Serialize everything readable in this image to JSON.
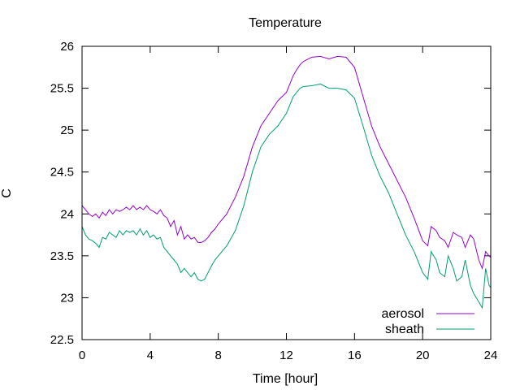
{
  "chart_data": {
    "type": "line",
    "title": "Temperature",
    "xlabel": "Time [hour]",
    "ylabel": "C",
    "xlim": [
      0,
      24
    ],
    "ylim": [
      22.5,
      26
    ],
    "xticks": [
      0,
      4,
      8,
      12,
      16,
      20,
      24
    ],
    "yticks": [
      22.5,
      23,
      23.5,
      24,
      24.5,
      25,
      25.5,
      26
    ],
    "xtick_labels": [
      "0",
      "4",
      "8",
      "12",
      "16",
      "20",
      "24"
    ],
    "ytick_labels": [
      "22.5",
      "23",
      "23.5",
      "24",
      "24.5",
      "25",
      "25.5",
      "26"
    ],
    "grid": false,
    "legend_position": "bottom-right",
    "series": [
      {
        "name": "aerosol",
        "color": "#9400d3",
        "x": [
          0,
          0.2,
          0.4,
          0.6,
          0.8,
          1.0,
          1.2,
          1.4,
          1.6,
          1.8,
          2.0,
          2.2,
          2.4,
          2.6,
          2.8,
          3.0,
          3.2,
          3.4,
          3.6,
          3.8,
          4.0,
          4.2,
          4.4,
          4.6,
          4.8,
          5.0,
          5.2,
          5.4,
          5.6,
          5.8,
          6.0,
          6.2,
          6.4,
          6.6,
          6.8,
          7.0,
          7.2,
          7.4,
          7.6,
          7.8,
          8.0,
          8.5,
          9.0,
          9.5,
          10.0,
          10.5,
          11.0,
          11.5,
          12.0,
          12.2,
          12.4,
          12.6,
          12.8,
          13.0,
          13.5,
          14.0,
          14.5,
          15.0,
          15.5,
          16.0,
          16.5,
          17.0,
          17.5,
          18.0,
          18.5,
          19.0,
          19.5,
          20.0,
          20.3,
          20.5,
          20.8,
          21.0,
          21.3,
          21.5,
          21.8,
          22.0,
          22.3,
          22.5,
          22.8,
          23.0,
          23.3,
          23.5,
          23.7,
          23.9,
          24.0
        ],
        "y": [
          24.1,
          24.05,
          24.0,
          23.97,
          24.0,
          23.95,
          24.02,
          23.98,
          24.05,
          24.0,
          24.05,
          24.03,
          24.05,
          24.08,
          24.05,
          24.1,
          24.05,
          24.08,
          24.05,
          24.1,
          24.05,
          24.03,
          24.0,
          24.05,
          23.98,
          23.95,
          23.85,
          23.92,
          23.75,
          23.85,
          23.7,
          23.75,
          23.7,
          23.72,
          23.66,
          23.66,
          23.68,
          23.72,
          23.78,
          23.82,
          23.88,
          24.0,
          24.2,
          24.45,
          24.8,
          25.05,
          25.2,
          25.35,
          25.45,
          25.55,
          25.65,
          25.72,
          25.78,
          25.82,
          25.87,
          25.88,
          25.85,
          25.88,
          25.87,
          25.75,
          25.4,
          25.05,
          24.8,
          24.6,
          24.4,
          24.2,
          23.95,
          23.68,
          23.62,
          23.85,
          23.8,
          23.72,
          23.68,
          23.6,
          23.78,
          23.75,
          23.72,
          23.6,
          23.75,
          23.7,
          23.45,
          23.35,
          23.55,
          23.5,
          23.48
        ]
      },
      {
        "name": "sheath",
        "color": "#009e73",
        "x": [
          0,
          0.2,
          0.4,
          0.6,
          0.8,
          1.0,
          1.2,
          1.4,
          1.6,
          1.8,
          2.0,
          2.2,
          2.4,
          2.6,
          2.8,
          3.0,
          3.2,
          3.4,
          3.6,
          3.8,
          4.0,
          4.2,
          4.4,
          4.6,
          4.8,
          5.0,
          5.2,
          5.4,
          5.6,
          5.8,
          6.0,
          6.2,
          6.4,
          6.6,
          6.8,
          7.0,
          7.2,
          7.4,
          7.6,
          7.8,
          8.0,
          8.5,
          9.0,
          9.5,
          10.0,
          10.5,
          11.0,
          11.5,
          12.0,
          12.2,
          12.4,
          12.6,
          12.8,
          13.0,
          13.5,
          14.0,
          14.5,
          15.0,
          15.5,
          16.0,
          16.5,
          17.0,
          17.5,
          18.0,
          18.5,
          19.0,
          19.5,
          20.0,
          20.3,
          20.5,
          20.8,
          21.0,
          21.3,
          21.5,
          21.8,
          22.0,
          22.3,
          22.5,
          22.8,
          23.0,
          23.3,
          23.5,
          23.7,
          23.9,
          24.0
        ],
        "y": [
          23.85,
          23.75,
          23.7,
          23.68,
          23.65,
          23.6,
          23.72,
          23.7,
          23.78,
          23.75,
          23.72,
          23.8,
          23.75,
          23.8,
          23.78,
          23.8,
          23.75,
          23.82,
          23.75,
          23.8,
          23.72,
          23.75,
          23.7,
          23.72,
          23.6,
          23.55,
          23.5,
          23.45,
          23.4,
          23.3,
          23.35,
          23.3,
          23.25,
          23.3,
          23.22,
          23.2,
          23.22,
          23.3,
          23.38,
          23.45,
          23.5,
          23.62,
          23.8,
          24.1,
          24.5,
          24.8,
          24.95,
          25.05,
          25.2,
          25.3,
          25.4,
          25.45,
          25.5,
          25.52,
          25.53,
          25.55,
          25.5,
          25.5,
          25.48,
          25.38,
          25.05,
          24.7,
          24.45,
          24.25,
          24.0,
          23.75,
          23.55,
          23.3,
          23.22,
          23.55,
          23.45,
          23.3,
          23.25,
          23.5,
          23.35,
          23.2,
          23.25,
          23.45,
          23.15,
          23.05,
          22.95,
          22.88,
          23.35,
          23.15,
          23.12
        ]
      }
    ]
  }
}
